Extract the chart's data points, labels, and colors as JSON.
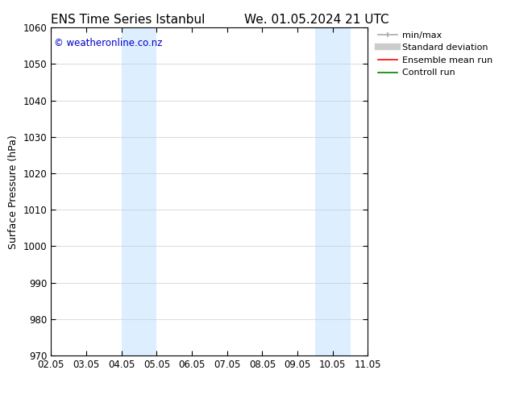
{
  "title_left": "ENS Time Series Istanbul",
  "title_right": "We. 01.05.2024 21 UTC",
  "ylabel": "Surface Pressure (hPa)",
  "xlabel": "",
  "ylim": [
    970,
    1060
  ],
  "yticks": [
    970,
    980,
    990,
    1000,
    1010,
    1020,
    1030,
    1040,
    1050,
    1060
  ],
  "xtick_labels": [
    "02.05",
    "03.05",
    "04.05",
    "05.05",
    "06.05",
    "07.05",
    "08.05",
    "09.05",
    "10.05",
    "11.05"
  ],
  "xtick_positions": [
    0,
    1,
    2,
    3,
    4,
    5,
    6,
    7,
    8,
    9
  ],
  "xlim": [
    0,
    9
  ],
  "shaded_regions": [
    {
      "x_start": 2.0,
      "x_end": 2.5,
      "color": "#ddeeff"
    },
    {
      "x_start": 2.5,
      "x_end": 3.0,
      "color": "#ddeeff"
    },
    {
      "x_start": 7.5,
      "x_end": 8.0,
      "color": "#ddeeff"
    },
    {
      "x_start": 8.0,
      "x_end": 8.5,
      "color": "#ddeeff"
    }
  ],
  "copyright_text": "© weatheronline.co.nz",
  "copyright_color": "#0000cc",
  "background_color": "#ffffff",
  "legend_entries": [
    {
      "label": "min/max",
      "color": "#aaaaaa",
      "lw": 1.2
    },
    {
      "label": "Standard deviation",
      "color": "#cccccc",
      "lw": 6
    },
    {
      "label": "Ensemble mean run",
      "color": "#ff0000",
      "lw": 1.2
    },
    {
      "label": "Controll run",
      "color": "#008000",
      "lw": 1.2
    }
  ],
  "grid_color": "#cccccc",
  "title_fontsize": 11,
  "axis_fontsize": 9,
  "tick_fontsize": 8.5
}
